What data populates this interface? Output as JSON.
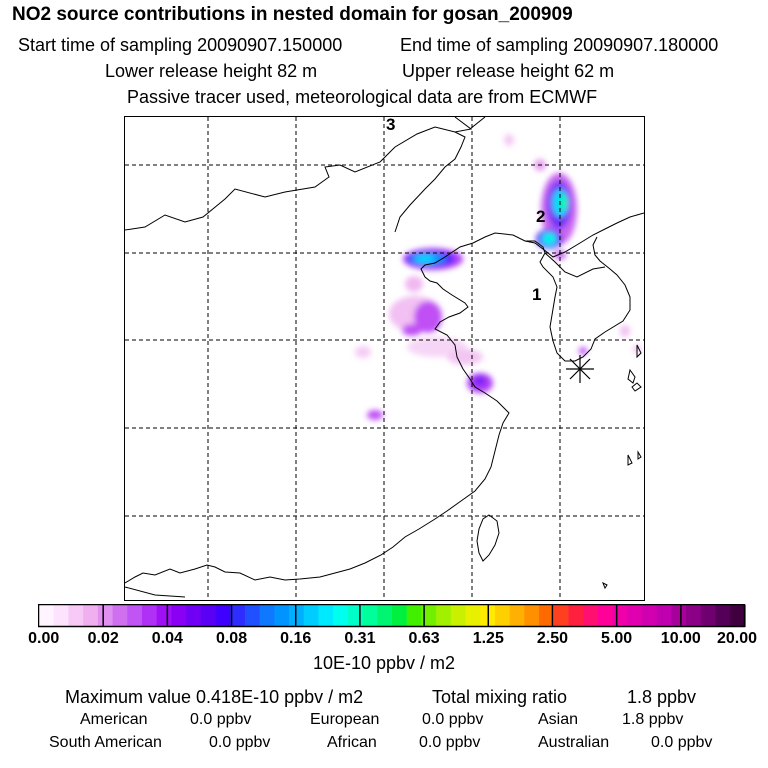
{
  "header": {
    "title": "NO2 source contributions in nested domain for gosan_200909",
    "start_time": "Start time of sampling 20090907.150000",
    "end_time": "End time of sampling 20090907.180000",
    "lower_height": "Lower release height   82 m",
    "upper_height": "Upper release height   62 m",
    "note": "Passive tracer used, meteorological data are from ECMWF"
  },
  "map": {
    "markers": [
      "1",
      "2",
      "3"
    ],
    "receptor_symbol": "asterisk"
  },
  "colorbar": {
    "tick_labels": [
      "0.00",
      "0.02",
      "0.04",
      "0.08",
      "0.16",
      "0.31",
      "0.63",
      "1.25",
      "2.50",
      "5.00",
      "10.00",
      "20.00"
    ],
    "colors": [
      "#fff4ff",
      "#fde3fd",
      "#f7c9f7",
      "#f0b0f0",
      "#e090f0",
      "#d070f0",
      "#c054f5",
      "#b030f5",
      "#a010f5",
      "#8a00f5",
      "#7000f5",
      "#5a00f5",
      "#4000ff",
      "#2f2cff",
      "#2050ff",
      "#1078ff",
      "#0094ff",
      "#00b0ff",
      "#00cdff",
      "#00eaff",
      "#00ffee",
      "#00ffc8",
      "#00ff9a",
      "#00f570",
      "#00f040",
      "#40f000",
      "#70f000",
      "#a0f000",
      "#c8f000",
      "#e8f000",
      "#ffea00",
      "#ffd000",
      "#ffb000",
      "#ff9000",
      "#ff6a00",
      "#ff4020",
      "#ff2040",
      "#ff1070",
      "#ff0099",
      "#f000a8",
      "#e000b0",
      "#d000b0",
      "#c000b0",
      "#a8009a",
      "#8c0088",
      "#700070",
      "#540058",
      "#400040"
    ],
    "units": "10E-10 ppbv / m2"
  },
  "summary": {
    "max_value": "Maximum value  0.418E-10 ppbv / m2",
    "total_label": "Total mixing ratio",
    "total_value": "1.8 ppbv",
    "sources": [
      {
        "name": "American",
        "value": "0.0 ppbv"
      },
      {
        "name": "European",
        "value": "0.0 ppbv"
      },
      {
        "name": "Asian",
        "value": "1.8 ppbv"
      },
      {
        "name": "South American",
        "value": "0.0 ppbv"
      },
      {
        "name": "African",
        "value": "0.0 ppbv"
      },
      {
        "name": "Australian",
        "value": "0.0 ppbv"
      }
    ]
  }
}
